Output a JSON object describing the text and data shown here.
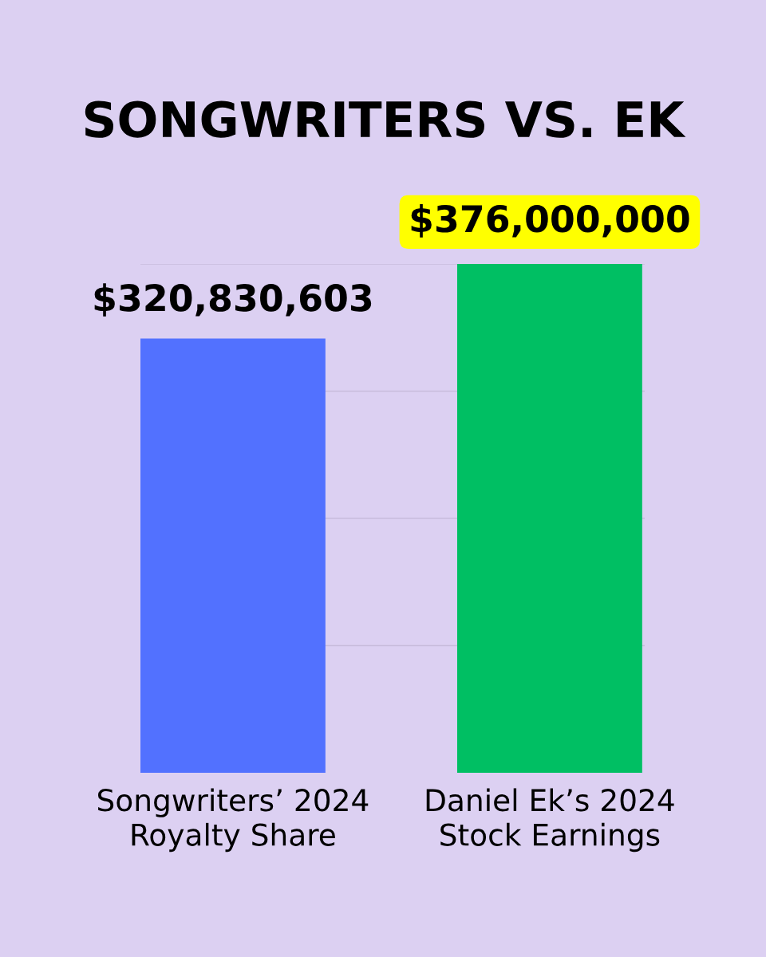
{
  "chart_data": {
    "type": "bar",
    "title": "SONGWRITERS VS. EK",
    "categories": [
      "Songwriters’ 2024\nRoyalty Share",
      "Daniel Ek’s 2024\nStock Earnings"
    ],
    "values": [
      320830603,
      376000000
    ],
    "colors": [
      "#5271ff",
      "#00bf63"
    ],
    "value_labels": [
      "$320,830,603",
      "$376,000,000"
    ],
    "ylim": [
      0,
      376000000
    ],
    "yticks": [
      {
        "value": 94000000,
        "label": null
      },
      {
        "value": 188000000,
        "label": null
      },
      {
        "value": 282000000,
        "label": null
      },
      {
        "value": 376000000,
        "label": null
      }
    ],
    "grid": "y",
    "legend": false
  }
}
